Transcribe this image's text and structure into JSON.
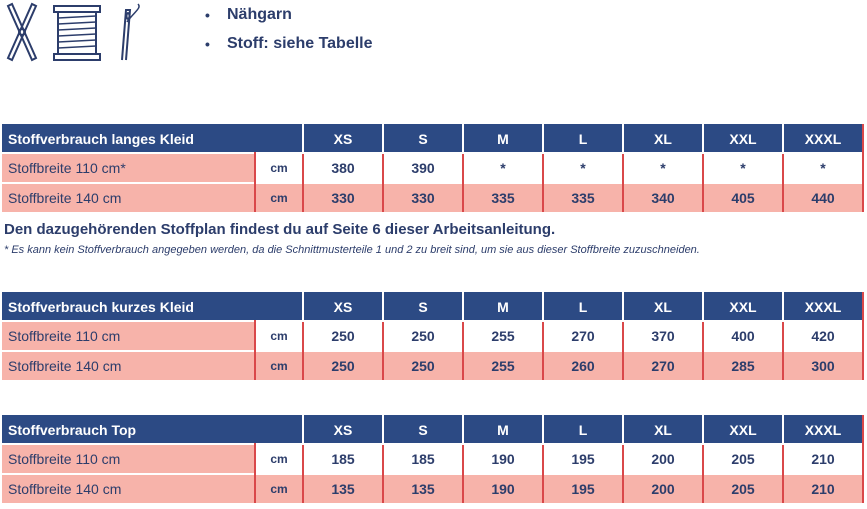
{
  "materials": {
    "bullet_symbol": "•",
    "items": [
      "Nähgarn",
      "Stoff: siehe Tabelle"
    ]
  },
  "sizes": [
    "XS",
    "S",
    "M",
    "L",
    "XL",
    "XXL",
    "XXXL"
  ],
  "tables": [
    {
      "title": "Stoffverbrauch langes Kleid",
      "rows": [
        {
          "label": "Stoffbreite 110 cm*",
          "unit": "cm",
          "values": [
            "380",
            "390",
            "*",
            "*",
            "*",
            "*",
            "*"
          ]
        },
        {
          "label": "Stoffbreite 140 cm",
          "unit": "cm",
          "values": [
            "330",
            "330",
            "335",
            "335",
            "340",
            "405",
            "440"
          ]
        }
      ]
    },
    {
      "title": "Stoffverbrauch kurzes Kleid",
      "rows": [
        {
          "label": "Stoffbreite 110 cm",
          "unit": "cm",
          "values": [
            "250",
            "250",
            "255",
            "270",
            "370",
            "400",
            "420"
          ]
        },
        {
          "label": "Stoffbreite 140 cm",
          "unit": "cm",
          "values": [
            "250",
            "250",
            "255",
            "260",
            "270",
            "285",
            "300"
          ]
        }
      ]
    },
    {
      "title": "Stoffverbrauch Top",
      "rows": [
        {
          "label": "Stoffbreite 110 cm",
          "unit": "cm",
          "values": [
            "185",
            "185",
            "190",
            "195",
            "200",
            "205",
            "210"
          ]
        },
        {
          "label": "Stoffbreite 140 cm",
          "unit": "cm",
          "values": [
            "135",
            "135",
            "190",
            "195",
            "200",
            "205",
            "210"
          ]
        }
      ]
    }
  ],
  "note": "Den dazugehörenden Stoffplan findest du auf Seite 6 dieser Arbeitsanleitung.",
  "footnote": "* Es kann kein Stoffverbrauch angegeben werden, da die Schnittmusterteile 1 und 2 zu breit sind, um sie aus dieser Stoffbreite zuzuschneiden.",
  "colors": {
    "header_bg": "#2c4a84",
    "row_pink": "#f7b3aa",
    "divider_red": "#d9484a",
    "text": "#2c3d6b"
  },
  "icons": [
    "scissors-icon",
    "thread-spool-icon",
    "needle-icon"
  ]
}
